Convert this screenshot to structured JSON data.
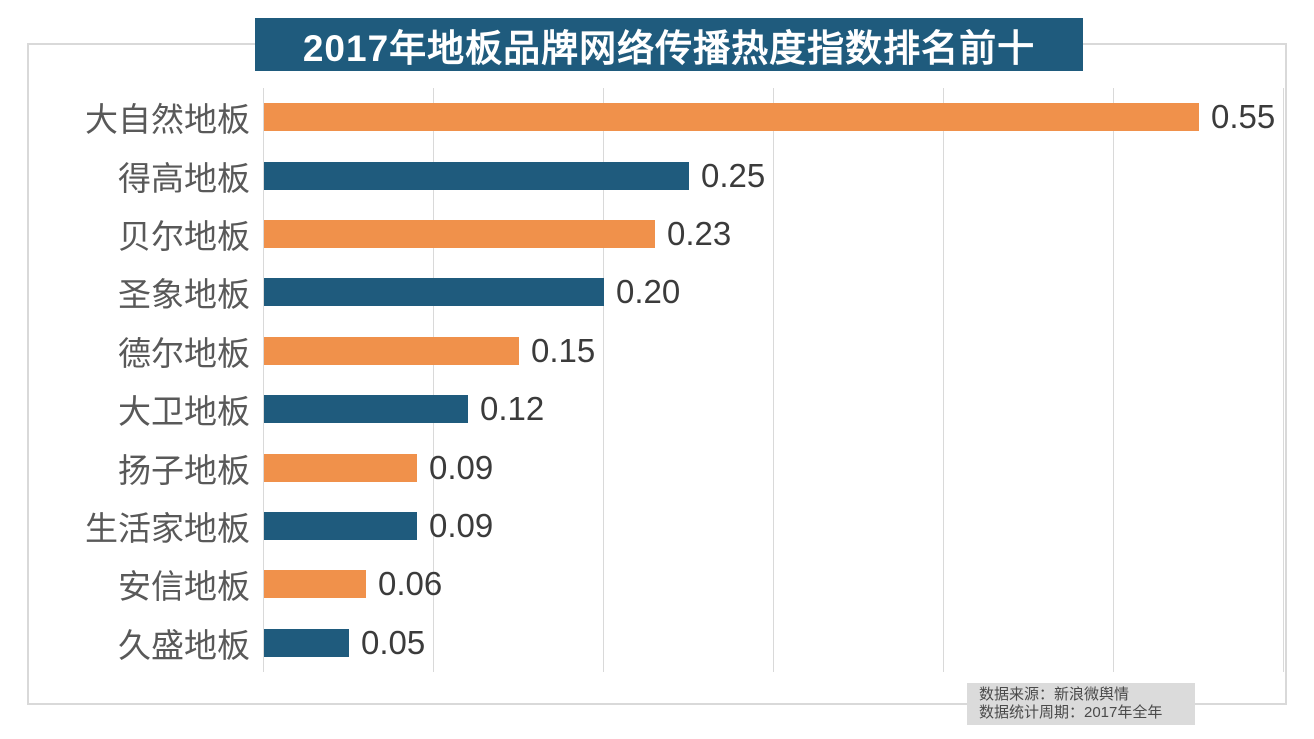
{
  "title_banner": {
    "text": "2017年地板品牌网络传播热度指数排名前十",
    "background_color": "#1F5B7D",
    "text_color": "#FFFFFF"
  },
  "source_note": {
    "line1": "数据来源：新浪微舆情",
    "line2": "数据统计周期：2017年全年"
  },
  "colors": {
    "bar_orange": "#F0914B",
    "bar_blue": "#1F5B7D",
    "gridline": "#D9D9D9",
    "panel_border": "#D9D9D9",
    "category_label": "#595959",
    "value_label": "#3B3B3B",
    "note_background": "#DBDBDB"
  },
  "chart_data": {
    "type": "bar",
    "orientation": "horizontal",
    "title": "2017年地板品牌网络传播热度指数排名前十",
    "categories": [
      "大自然地板",
      "得高地板",
      "贝尔地板",
      "圣象地板",
      "德尔地板",
      "大卫地板",
      "扬子地板",
      "生活家地板",
      "安信地板",
      "久盛地板"
    ],
    "values": [
      0.55,
      0.25,
      0.23,
      0.2,
      0.15,
      0.12,
      0.09,
      0.09,
      0.06,
      0.05
    ],
    "value_labels": [
      "0.55",
      "0.25",
      "0.23",
      "0.20",
      "0.15",
      "0.12",
      "0.09",
      "0.09",
      "0.06",
      "0.05"
    ],
    "xlabel": "",
    "ylabel": "",
    "xlim": [
      0,
      0.6
    ],
    "gridline_step": 0.1,
    "grid": true,
    "legend_position": "none",
    "data_labels": true,
    "bar_colors_alternating": [
      "#F0914B",
      "#1F5B7D"
    ]
  }
}
